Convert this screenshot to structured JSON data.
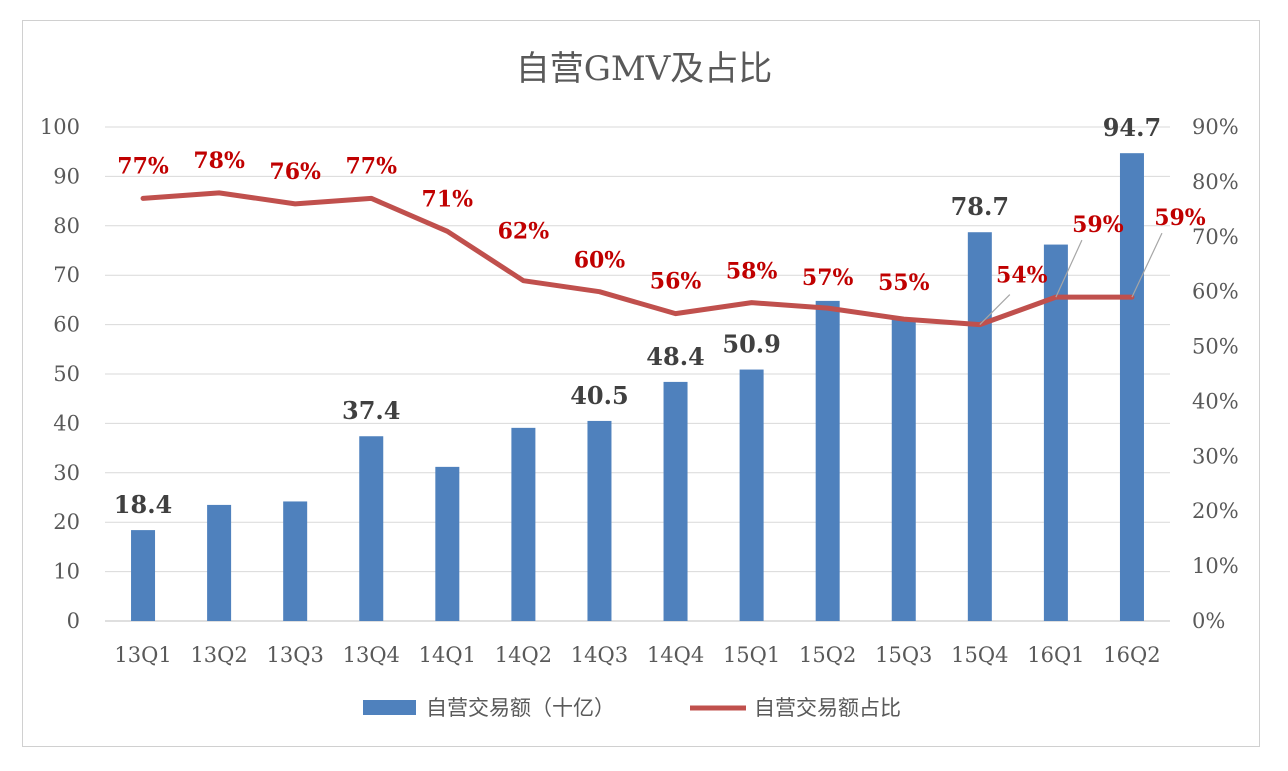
{
  "chart_data": {
    "type": "bar+line",
    "title": "自营GMV及占比",
    "categories": [
      "13Q1",
      "13Q2",
      "13Q3",
      "13Q4",
      "14Q1",
      "14Q2",
      "14Q3",
      "14Q4",
      "15Q1",
      "15Q2",
      "15Q3",
      "15Q4",
      "16Q1",
      "16Q2"
    ],
    "series": [
      {
        "name": "自营交易额（十亿）",
        "type": "bar",
        "axis": "left",
        "color": "#4f81bd",
        "values": [
          18.4,
          23.5,
          24.2,
          37.4,
          31.2,
          39.1,
          40.5,
          48.4,
          50.9,
          64.8,
          61.3,
          78.7,
          76.2,
          94.7
        ],
        "labels": [
          "18.4",
          "",
          "",
          "37.4",
          "",
          "",
          "40.5",
          "48.4",
          "50.9",
          "",
          "",
          "78.7",
          "",
          "94.7"
        ]
      },
      {
        "name": "自营交易额占比",
        "type": "line",
        "axis": "right",
        "color": "#c0504d",
        "values": [
          0.77,
          0.78,
          0.76,
          0.77,
          0.71,
          0.62,
          0.6,
          0.56,
          0.58,
          0.57,
          0.55,
          0.54,
          0.59,
          0.59
        ],
        "labels": [
          "77%",
          "78%",
          "76%",
          "77%",
          "71%",
          "62%",
          "60%",
          "56%",
          "58%",
          "57%",
          "55%",
          "54%",
          "59%",
          "59%"
        ]
      }
    ],
    "y_left": {
      "min": 0,
      "max": 100,
      "ticks": [
        "0",
        "10",
        "20",
        "30",
        "40",
        "50",
        "60",
        "70",
        "80",
        "90",
        "100"
      ]
    },
    "y_right": {
      "min": 0,
      "max": 0.9,
      "ticks": [
        "0%",
        "10%",
        "20%",
        "30%",
        "40%",
        "50%",
        "60%",
        "70%",
        "80%",
        "90%"
      ]
    },
    "grid": true,
    "legend_position": "bottom"
  }
}
